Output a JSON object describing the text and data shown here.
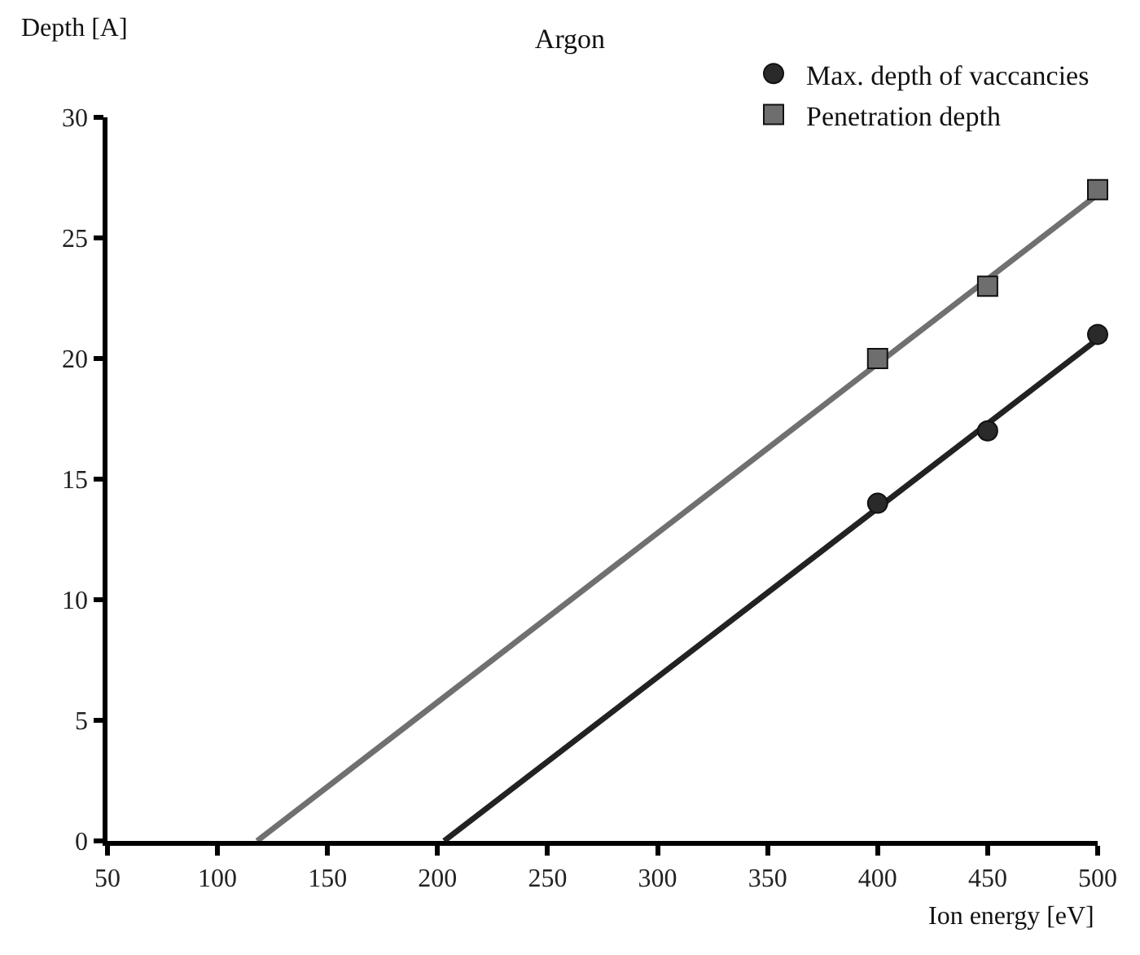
{
  "chart_data": {
    "type": "scatter",
    "title": "Argon",
    "xlabel": "Ion energy [eV]",
    "ylabel": "Depth [A]",
    "xlim": [
      50,
      500
    ],
    "xticks": [
      50,
      100,
      150,
      200,
      250,
      300,
      350,
      400,
      450,
      500
    ],
    "ylim": [
      0,
      30
    ],
    "yticks": [
      0,
      5,
      10,
      15,
      20,
      25,
      30
    ],
    "legend": "top right",
    "series": [
      {
        "type": "line",
        "marker": "none",
        "color": "#222222",
        "x": [
          203,
          500
        ],
        "values": [
          0,
          20.8
        ]
      },
      {
        "type": "line",
        "marker": "none",
        "color": "#707070",
        "x": [
          118,
          500
        ],
        "values": [
          0,
          26.8
        ]
      },
      {
        "name": "Max. depth of vaccancies",
        "marker": "circle",
        "color": "#2a2a2a",
        "x": [
          400,
          450,
          500
        ],
        "values": [
          14,
          17,
          21
        ]
      },
      {
        "name": "Penetration depth",
        "marker": "square",
        "color": "#6e6e6e",
        "x": [
          400,
          450,
          500
        ],
        "values": [
          20,
          23,
          27
        ]
      }
    ]
  }
}
